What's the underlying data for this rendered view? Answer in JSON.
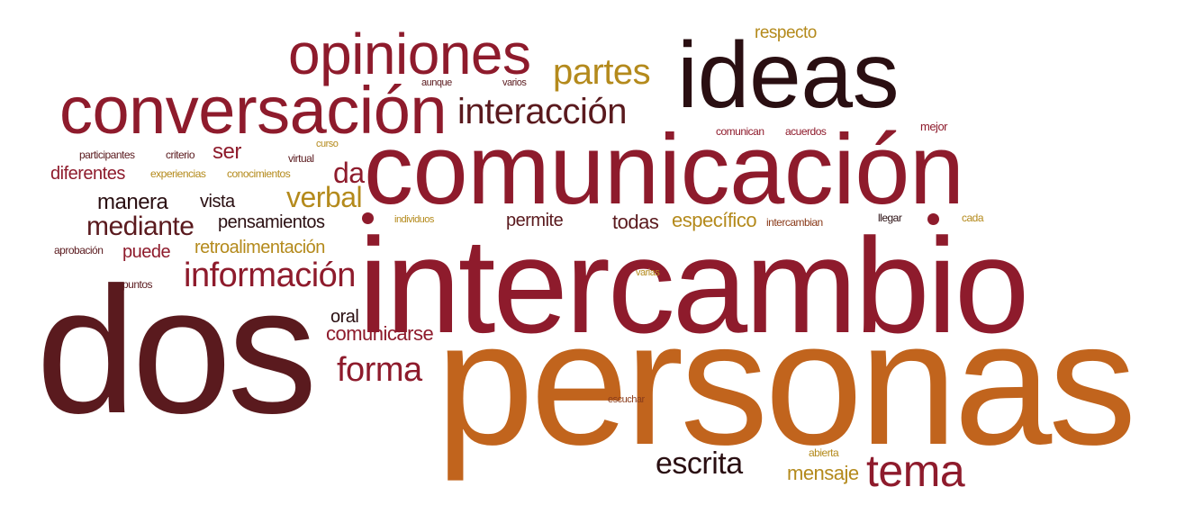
{
  "words": {
    "opiniones": "opiniones",
    "respecto": "respecto",
    "partes": "partes",
    "ideas": "ideas",
    "conversacion": "conversación",
    "aunque": "aunque",
    "varios": "varios",
    "interaccion": "interacción",
    "mejor": "mejor",
    "comunican": "comunican",
    "acuerdos": "acuerdos",
    "participantes": "participantes",
    "criterio": "criterio",
    "ser": "ser",
    "virtual": "virtual",
    "curso": "curso",
    "comunicacion": "comunicación",
    "diferentes": "diferentes",
    "experiencias": "experiencias",
    "conocimientos": "conocimientos",
    "da": "da",
    "manera": "manera",
    "vista": "vista",
    "verbal": "verbal",
    "mediante": "mediante",
    "pensamientos": "pensamientos",
    "individuos": "individuos",
    "permite": "permite",
    "todas": "todas",
    "especifico": "específico",
    "intercambian": "intercambian",
    "llegar": "llegar",
    "cada": "cada",
    "aprobacion": "aprobación",
    "puede": "puede",
    "retroalimentacion": "retroalimentación",
    "intercambio": "intercambio",
    "informacion": "información",
    "varias": "varias",
    "puntos": "puntos",
    "dos": "dos",
    "oral": "oral",
    "comunicarse": "comunicarse",
    "personas": "personas",
    "forma": "forma",
    "escuchar": "escuchar",
    "abierta": "abierta",
    "escrita": "escrita",
    "tema": "tema",
    "mensaje": "mensaje"
  },
  "colors": {
    "red": "#8e1b2c",
    "dark": "#2a0f12",
    "dark_red": "#5a1a1e",
    "orange": "#c1641d",
    "gold": "#b48a1c",
    "brown": "#8a3b1a"
  }
}
